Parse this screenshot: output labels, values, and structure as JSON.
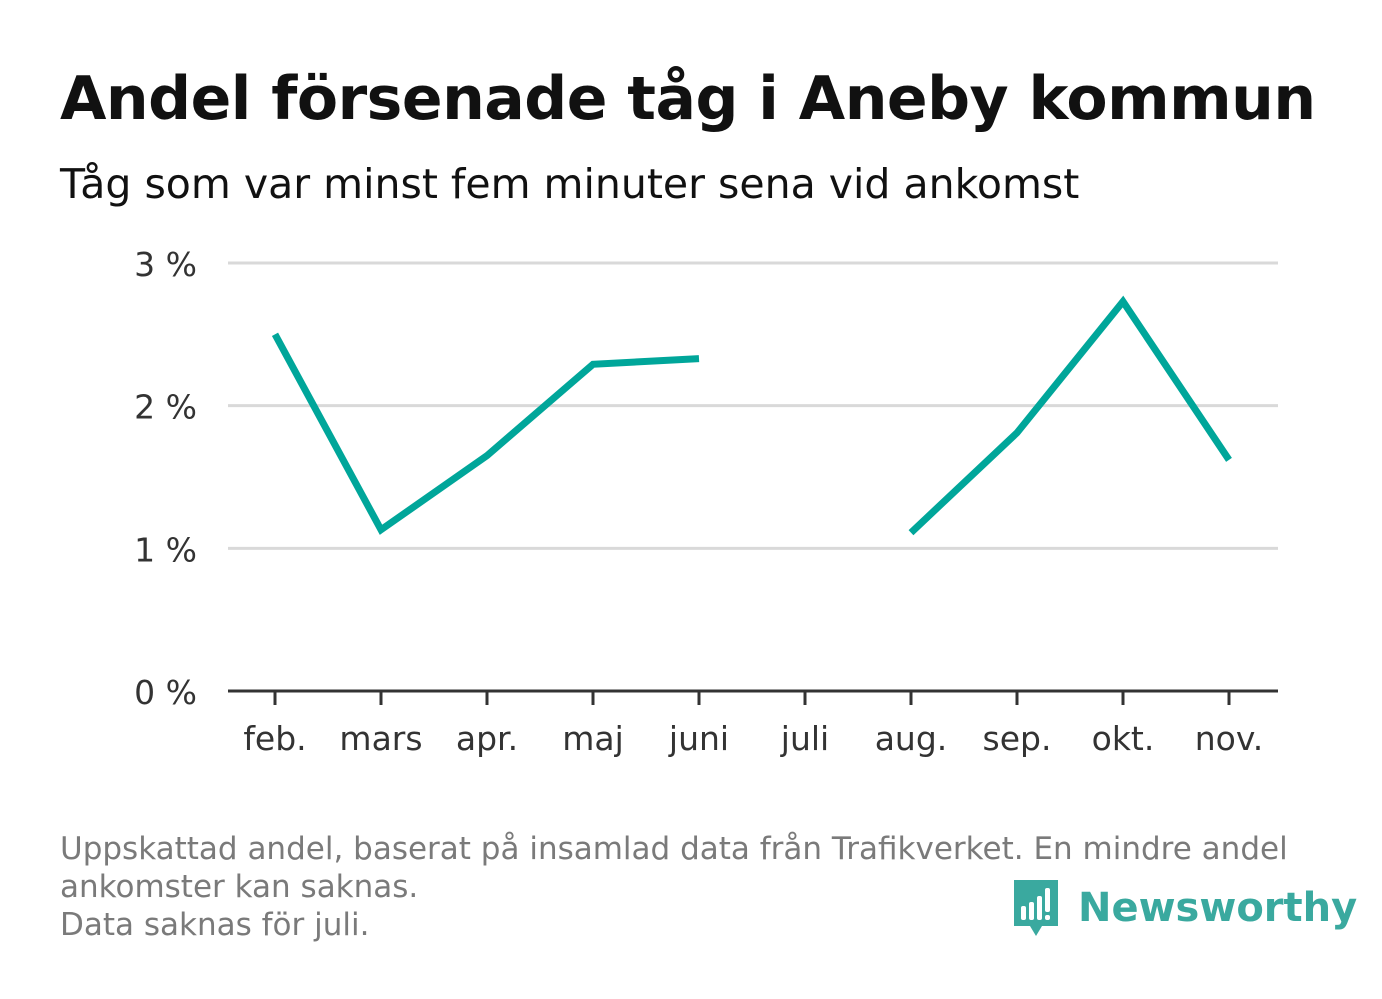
{
  "title": "Andel försenade tåg i Aneby kommun",
  "subtitle": "Tåg som var minst fem minuter sena vid ankomst",
  "footnote": [
    "Uppskattad andel, baserat på insamlad data från Trafikverket. En mindre andel",
    "ankomster kan saknas.",
    "Data saknas för juli."
  ],
  "brand": {
    "name": "Newsworthy",
    "icon": "bar-chart-speech-bubble-icon"
  },
  "colors": {
    "line": "#00a69a",
    "grid": "#d9d9d9",
    "axis": "#333333",
    "brand": "#3aa99f",
    "footnote": "#7a7a7a"
  },
  "chart_data": {
    "type": "line",
    "categories": [
      "feb.",
      "mars",
      "apr.",
      "maj",
      "juni",
      "juli",
      "aug.",
      "sep.",
      "okt.",
      "nov."
    ],
    "series": [
      {
        "values": [
          2.5,
          1.13,
          1.65,
          2.29,
          2.33,
          null,
          1.11,
          1.81,
          2.73,
          1.62
        ]
      }
    ],
    "yticks": [
      "0 %",
      "1 %",
      "2 %",
      "3 %"
    ],
    "ylim": [
      0,
      3
    ],
    "grid": true
  }
}
